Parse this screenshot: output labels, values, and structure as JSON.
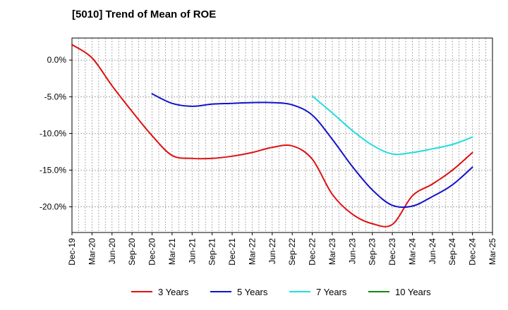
{
  "chart_data": {
    "type": "line",
    "title": "[5010]  Trend of Mean of ROE",
    "xlabel": "",
    "ylabel": "",
    "x_range": [
      "Dec-19",
      "Mar-25"
    ],
    "x_ticks": [
      "Dec-19",
      "Mar-20",
      "Jun-20",
      "Sep-20",
      "Dec-20",
      "Mar-21",
      "Jun-21",
      "Sep-21",
      "Dec-21",
      "Mar-22",
      "Jun-22",
      "Sep-22",
      "Dec-22",
      "Mar-23",
      "Jun-23",
      "Sep-23",
      "Dec-23",
      "Mar-24",
      "Jun-24",
      "Sep-24",
      "Dec-24",
      "Mar-25"
    ],
    "ylim": [
      -23.5,
      3.0
    ],
    "y_ticks": [
      0,
      -5,
      -10,
      -15,
      -20
    ],
    "y_tick_labels": [
      "0.0%",
      "-5.0%",
      "-10.0%",
      "-15.0%",
      "-20.0%"
    ],
    "grid": true,
    "legend_position": "bottom",
    "series": [
      {
        "name": "3 Years",
        "color": "#dd1111",
        "x": [
          "Dec-19",
          "Mar-20",
          "Jun-20",
          "Sep-20",
          "Dec-20",
          "Mar-21",
          "Jun-21",
          "Sep-21",
          "Dec-21",
          "Mar-22",
          "Jun-22",
          "Sep-22",
          "Dec-22",
          "Mar-23",
          "Jun-23",
          "Sep-23",
          "Dec-23",
          "Mar-24",
          "Jun-24",
          "Sep-24",
          "Dec-24"
        ],
        "values": [
          2.1,
          0.3,
          -3.5,
          -7.0,
          -10.3,
          -13.0,
          -13.4,
          -13.4,
          -13.1,
          -12.6,
          -11.9,
          -11.7,
          -13.5,
          -18.3,
          -21.0,
          -22.3,
          -22.4,
          -18.5,
          -16.9,
          -15.0,
          -12.6
        ]
      },
      {
        "name": "5 Years",
        "color": "#1111cc",
        "x": [
          "Dec-20",
          "Mar-21",
          "Jun-21",
          "Sep-21",
          "Dec-21",
          "Mar-22",
          "Jun-22",
          "Sep-22",
          "Dec-22",
          "Mar-23",
          "Jun-23",
          "Sep-23",
          "Dec-23",
          "Mar-24",
          "Jun-24",
          "Sep-24",
          "Dec-24"
        ],
        "values": [
          -4.6,
          -5.9,
          -6.3,
          -6.0,
          -5.9,
          -5.8,
          -5.8,
          -6.1,
          -7.5,
          -10.8,
          -14.5,
          -17.7,
          -19.8,
          -19.9,
          -18.6,
          -17.0,
          -14.6
        ]
      },
      {
        "name": "7 Years",
        "color": "#22dddd",
        "x": [
          "Dec-22",
          "Mar-23",
          "Jun-23",
          "Sep-23",
          "Dec-23",
          "Mar-24",
          "Jun-24",
          "Sep-24",
          "Dec-24"
        ],
        "values": [
          -4.9,
          -7.2,
          -9.6,
          -11.6,
          -12.8,
          -12.6,
          -12.1,
          -11.5,
          -10.5
        ]
      },
      {
        "name": "10 Years",
        "color": "#118811",
        "x": [],
        "values": []
      }
    ]
  }
}
